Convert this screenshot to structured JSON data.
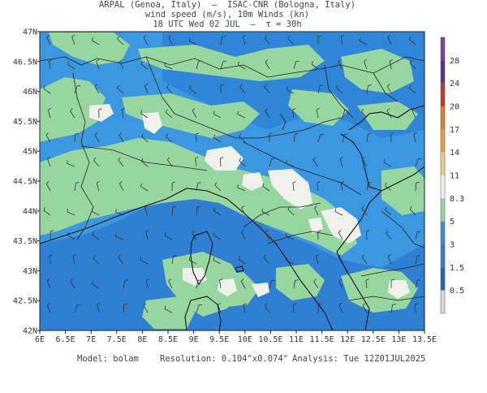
{
  "header": {
    "line1": "ARPAL (Genoa, Italy)  —  ISAC-CNR (Bologna, Italy)",
    "line2": "wind speed (m/s), 10m Winds (kn)",
    "line3": "18 UTC Wed 02 JUL  —  τ = 30h"
  },
  "axes": {
    "x_ticks": [
      "6E",
      "6.5E",
      "7E",
      "7.5E",
      "8E",
      "8.5E",
      "9E",
      "9.5E",
      "10E",
      "10.5E",
      "11E",
      "11.5E",
      "12E",
      "12.5E",
      "13E",
      "13.5E"
    ],
    "y_ticks": [
      "47N",
      "46.5N",
      "46N",
      "45.5N",
      "45N",
      "44.5N",
      "44N",
      "43.5N",
      "43N",
      "42.5N",
      "42N"
    ]
  },
  "legend": {
    "labels": [
      "28",
      "24",
      "20",
      "17",
      "14",
      "11",
      "8.3",
      "5",
      "3",
      "1.5",
      "0.5"
    ],
    "colors": [
      "#7e3fa3",
      "#5a2f8c",
      "#c0392b",
      "#d9822b",
      "#e8a040",
      "#e8d07a",
      "#f0f0ec",
      "#98d6a0",
      "#3a8fd6",
      "#2f7fd2",
      "#1f64c0",
      "#d8d8d8"
    ]
  },
  "footer": {
    "model": "Model: bolam",
    "resolution": "Resolution: 0.104°x0.074°",
    "analysis": "Analysis: Tue 12Z01JUL2025"
  }
}
